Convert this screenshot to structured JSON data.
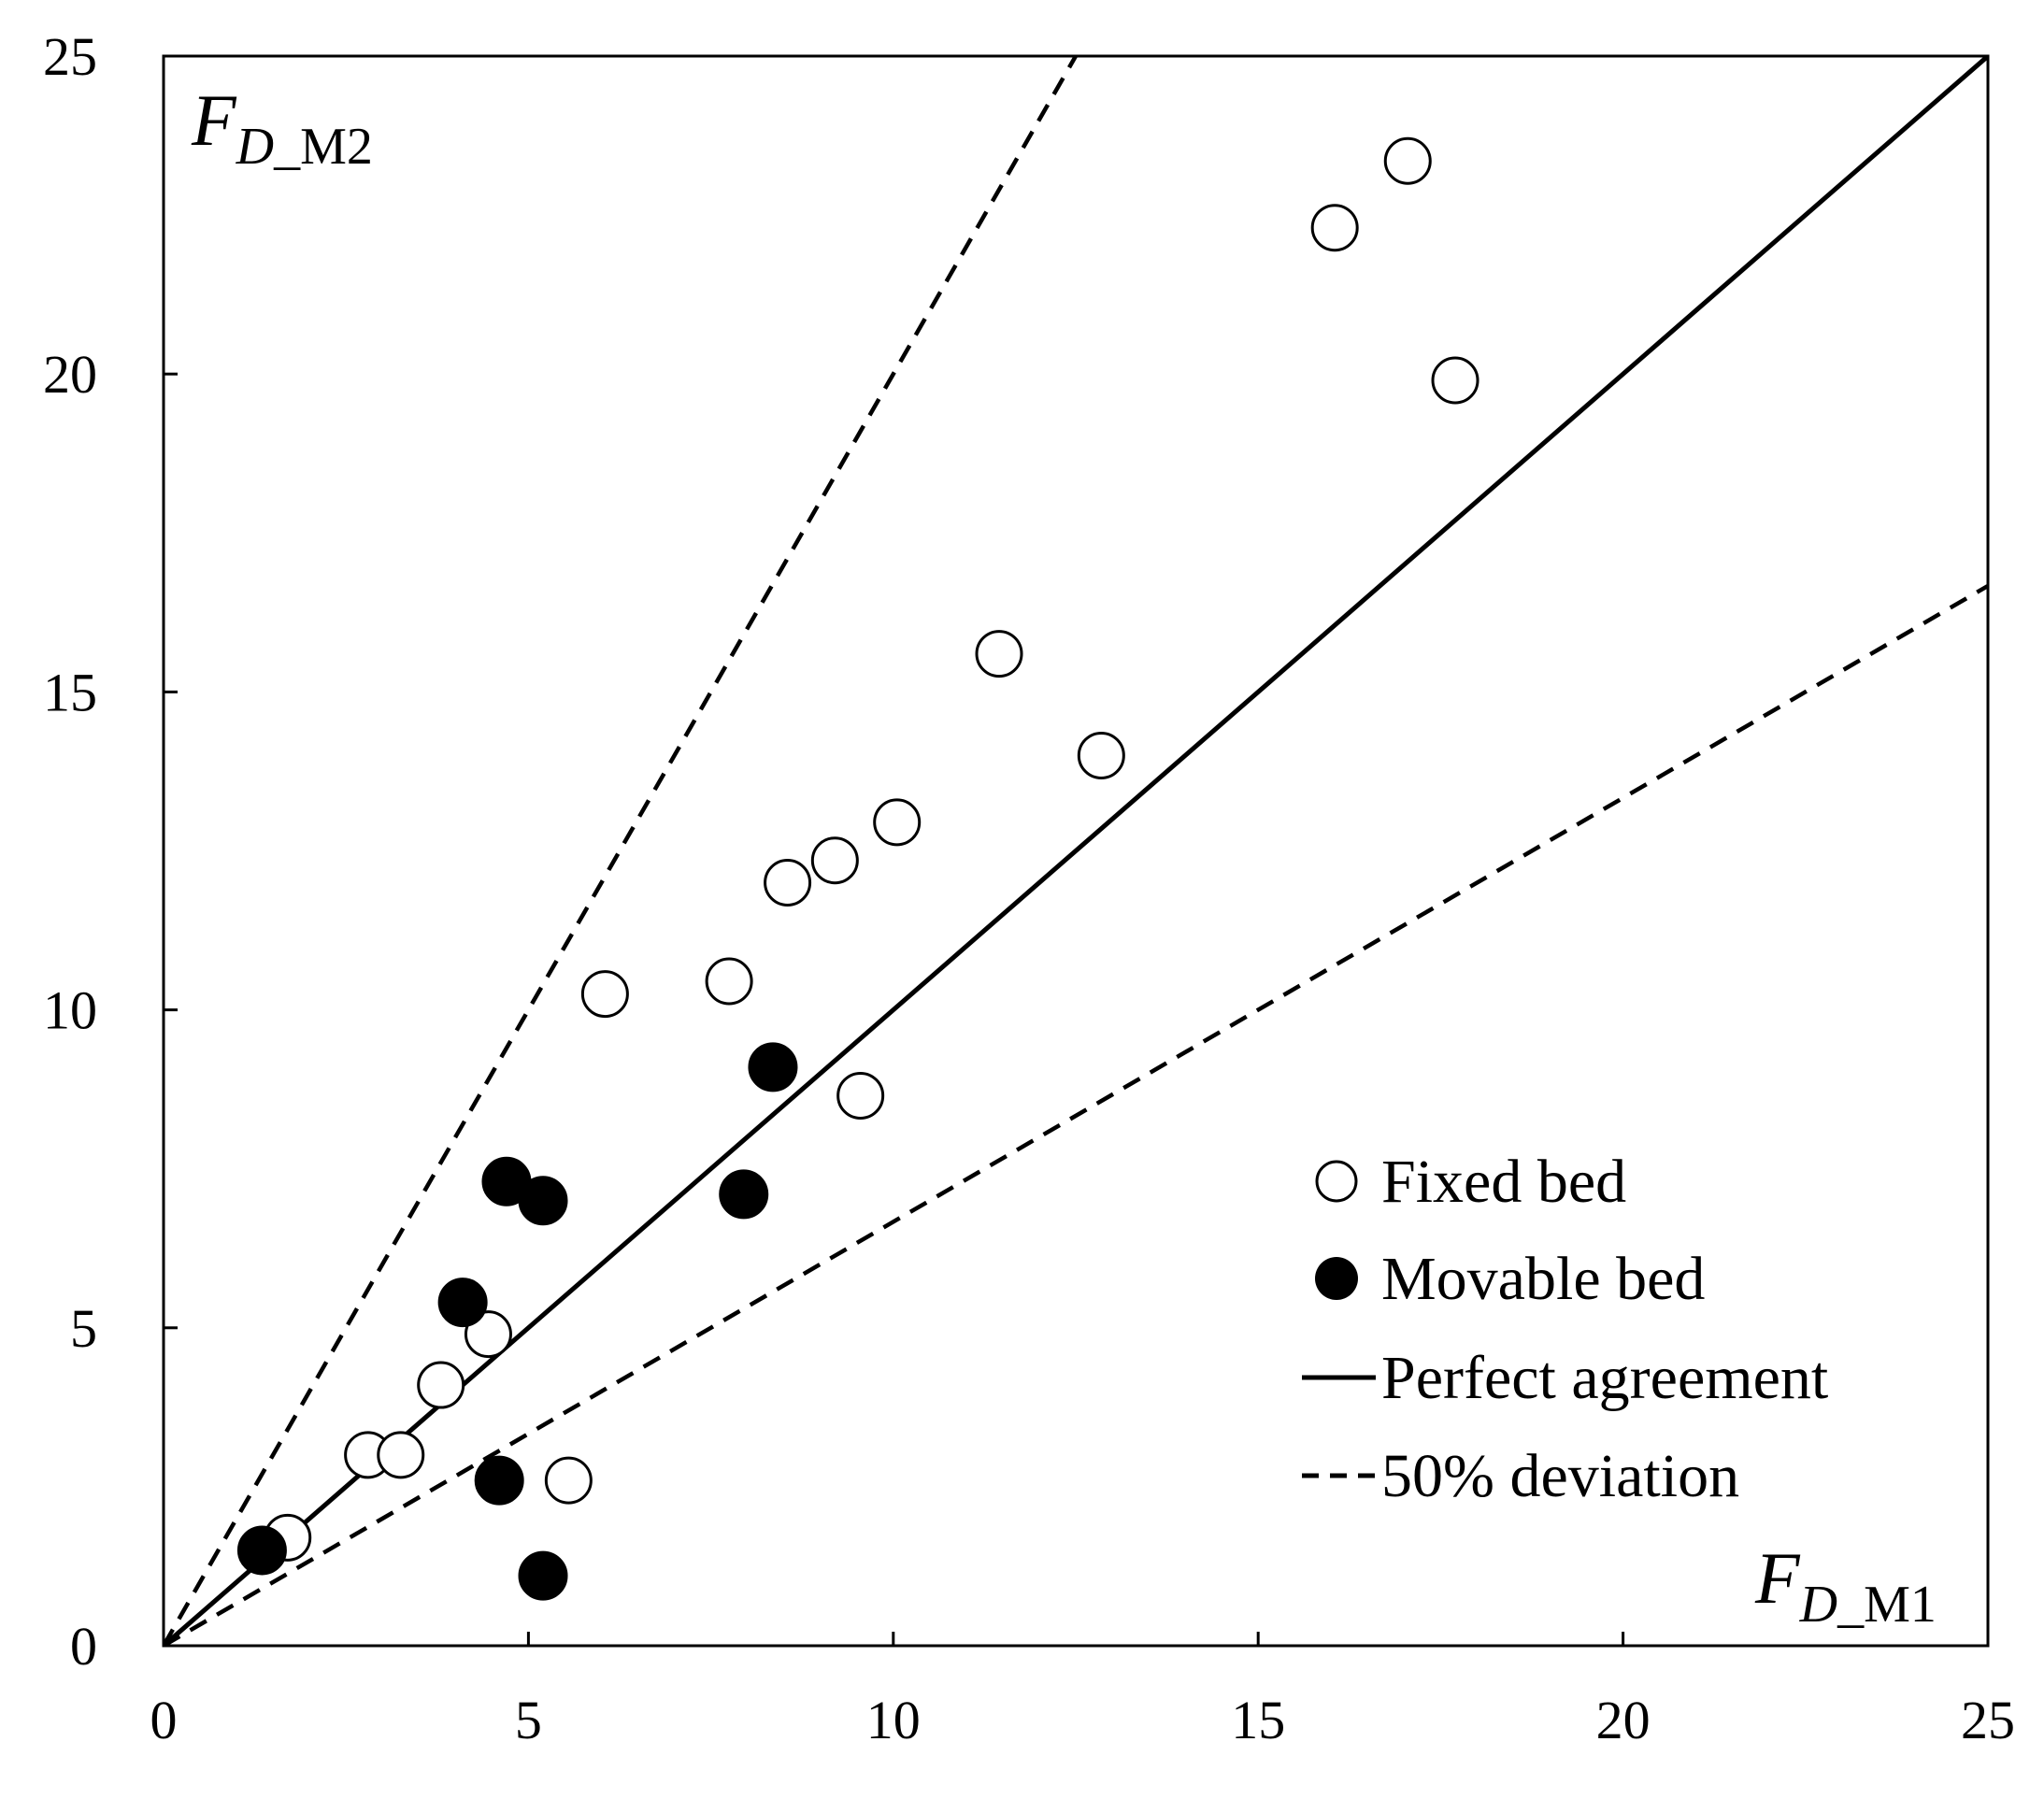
{
  "chart_data": {
    "type": "scatter",
    "xlim": [
      0,
      25
    ],
    "ylim": [
      0,
      25
    ],
    "x_ticks": [
      "0",
      "5",
      "10",
      "15",
      "20",
      "25"
    ],
    "y_ticks": [
      "0",
      "5",
      "10",
      "15",
      "20",
      "25"
    ],
    "xlabel": {
      "main": "F",
      "sub_italic": "D",
      "sub": "_M1"
    },
    "ylabel": {
      "main": "F",
      "sub_italic": "D",
      "sub": "_M2"
    },
    "grid": false,
    "legend_position": "bottom-right",
    "series": [
      {
        "name": "Fixed bed",
        "marker": "open-circle",
        "points": [
          [
            1.7,
            1.7
          ],
          [
            2.8,
            3.0
          ],
          [
            3.25,
            3.0
          ],
          [
            3.8,
            4.1
          ],
          [
            4.45,
            4.9
          ],
          [
            5.55,
            2.6
          ],
          [
            6.05,
            10.25
          ],
          [
            7.75,
            10.45
          ],
          [
            8.55,
            12.0
          ],
          [
            9.2,
            12.35
          ],
          [
            9.55,
            8.65
          ],
          [
            10.05,
            12.95
          ],
          [
            11.45,
            15.6
          ],
          [
            12.85,
            14.0
          ],
          [
            16.05,
            22.3
          ],
          [
            17.05,
            23.35
          ],
          [
            17.7,
            19.9
          ]
        ]
      },
      {
        "name": "Movable bed",
        "marker": "filled-circle",
        "points": [
          [
            1.35,
            1.5
          ],
          [
            4.1,
            5.4
          ],
          [
            4.6,
            2.6
          ],
          [
            4.7,
            7.3
          ],
          [
            5.2,
            7.0
          ],
          [
            5.2,
            1.1
          ],
          [
            7.95,
            7.1
          ],
          [
            8.35,
            9.1
          ]
        ]
      }
    ],
    "reference_lines": [
      {
        "name": "Perfect agreement",
        "style": "solid",
        "slope": 1.0
      },
      {
        "name": "50% deviation",
        "style": "dashed",
        "slope": 2.0
      },
      {
        "name": "50% deviation",
        "style": "dashed",
        "slope": 0.6667
      }
    ],
    "legend": [
      "Fixed bed",
      "Movable bed",
      "Perfect agreement",
      "50% deviation"
    ]
  }
}
